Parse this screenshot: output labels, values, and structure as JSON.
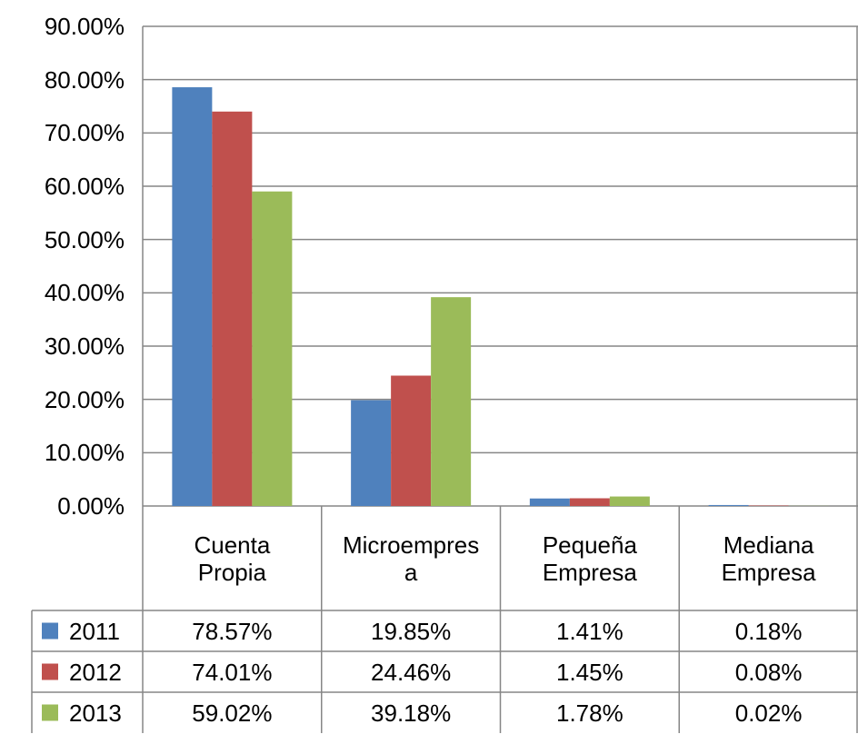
{
  "chart_data": {
    "type": "bar",
    "categories": [
      "Cuenta Propia",
      "Microempresa",
      "Pequeña Empresa",
      "Mediana Empresa"
    ],
    "series": [
      {
        "name": "2011",
        "color": "#4f81bd",
        "values": [
          78.57,
          19.85,
          1.41,
          0.18
        ],
        "value_labels": [
          "78.57%",
          "19.85%",
          "1.41%",
          "0.18%"
        ]
      },
      {
        "name": "2012",
        "color": "#c0504d",
        "values": [
          74.01,
          24.46,
          1.45,
          0.08
        ],
        "value_labels": [
          "74.01%",
          "24.46%",
          "1.45%",
          "0.08%"
        ]
      },
      {
        "name": "2013",
        "color": "#9bbb59",
        "values": [
          59.02,
          39.18,
          1.78,
          0.02
        ],
        "value_labels": [
          "59.02%",
          "39.18%",
          "1.78%",
          "0.02%"
        ]
      }
    ],
    "ylim": [
      0,
      90
    ],
    "yticks": [
      {
        "value": 0,
        "label": "0.00%"
      },
      {
        "value": 10,
        "label": "10.00%"
      },
      {
        "value": 20,
        "label": "20.00%"
      },
      {
        "value": 30,
        "label": "30.00%"
      },
      {
        "value": 40,
        "label": "40.00%"
      },
      {
        "value": 50,
        "label": "50.00%"
      },
      {
        "value": 60,
        "label": "60.00%"
      },
      {
        "value": 70,
        "label": "70.00%"
      },
      {
        "value": 80,
        "label": "80.00%"
      },
      {
        "value": 90,
        "label": "90.00%"
      }
    ],
    "grid": true,
    "data_table": true
  }
}
